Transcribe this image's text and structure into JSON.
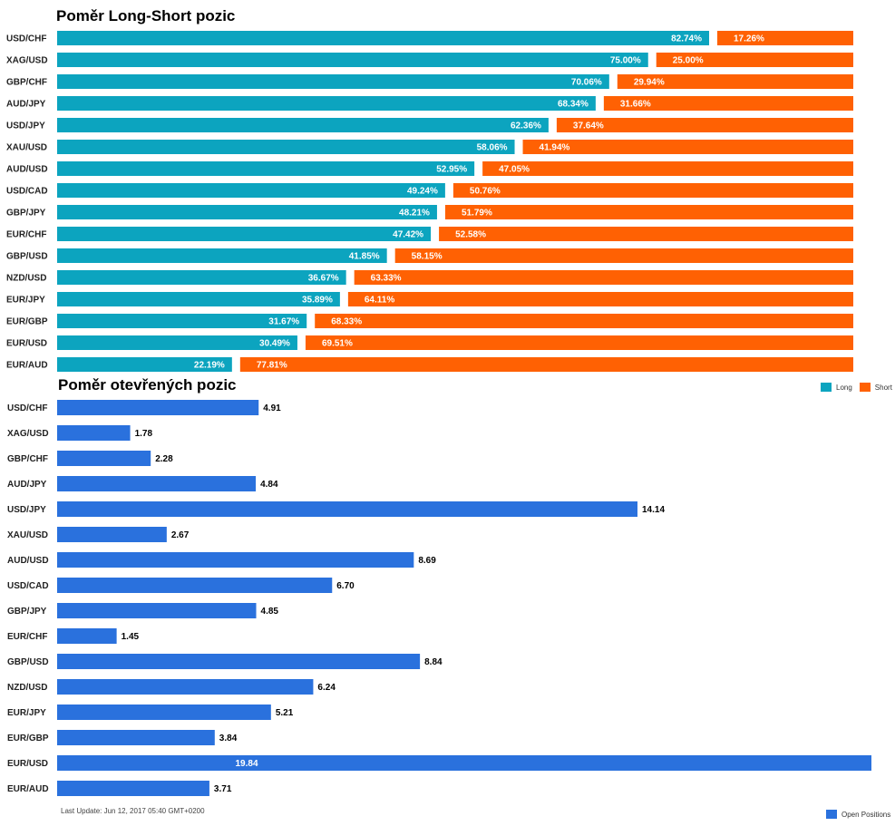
{
  "colors": {
    "long": "#0ca4bf",
    "short": "#ff6103",
    "open": "#2a71dd"
  },
  "chart_data": [
    {
      "type": "bar",
      "title": "Poměr Long-Short pozic",
      "orientation": "horizontal-stacked-100",
      "categories": [
        "USD/CHF",
        "XAG/USD",
        "GBP/CHF",
        "AUD/JPY",
        "USD/JPY",
        "XAU/USD",
        "AUD/USD",
        "USD/CAD",
        "GBP/JPY",
        "EUR/CHF",
        "GBP/USD",
        "NZD/USD",
        "EUR/JPY",
        "EUR/GBP",
        "EUR/USD",
        "EUR/AUD"
      ],
      "series": [
        {
          "name": "Long",
          "values": [
            82.74,
            75.0,
            70.06,
            68.34,
            62.36,
            58.06,
            52.95,
            49.24,
            48.21,
            47.42,
            41.85,
            36.67,
            35.89,
            31.67,
            30.49,
            22.19
          ]
        },
        {
          "name": "Short",
          "values": [
            17.26,
            25.0,
            29.94,
            31.66,
            37.64,
            41.94,
            47.05,
            50.76,
            51.79,
            52.58,
            58.15,
            63.33,
            64.11,
            68.33,
            69.51,
            77.81
          ]
        }
      ],
      "legend": [
        "Long",
        "Short"
      ],
      "legend_position": "bottom-right"
    },
    {
      "type": "bar",
      "title": "Poměr otevřených pozic",
      "orientation": "horizontal",
      "categories": [
        "USD/CHF",
        "XAG/USD",
        "GBP/CHF",
        "AUD/JPY",
        "USD/JPY",
        "XAU/USD",
        "AUD/USD",
        "USD/CAD",
        "GBP/JPY",
        "EUR/CHF",
        "GBP/USD",
        "NZD/USD",
        "EUR/JPY",
        "EUR/GBP",
        "EUR/USD",
        "EUR/AUD"
      ],
      "series": [
        {
          "name": "Open Positions",
          "values": [
            4.91,
            1.78,
            2.28,
            4.84,
            14.14,
            2.67,
            8.69,
            6.7,
            4.85,
            1.45,
            8.84,
            6.24,
            5.21,
            3.84,
            19.84,
            3.71
          ]
        }
      ],
      "legend": [
        "Open Positions"
      ],
      "legend_position": "bottom-right"
    }
  ],
  "footer": {
    "last_update": "Last Update: Jun 12, 2017 05:40 GMT+0200"
  }
}
